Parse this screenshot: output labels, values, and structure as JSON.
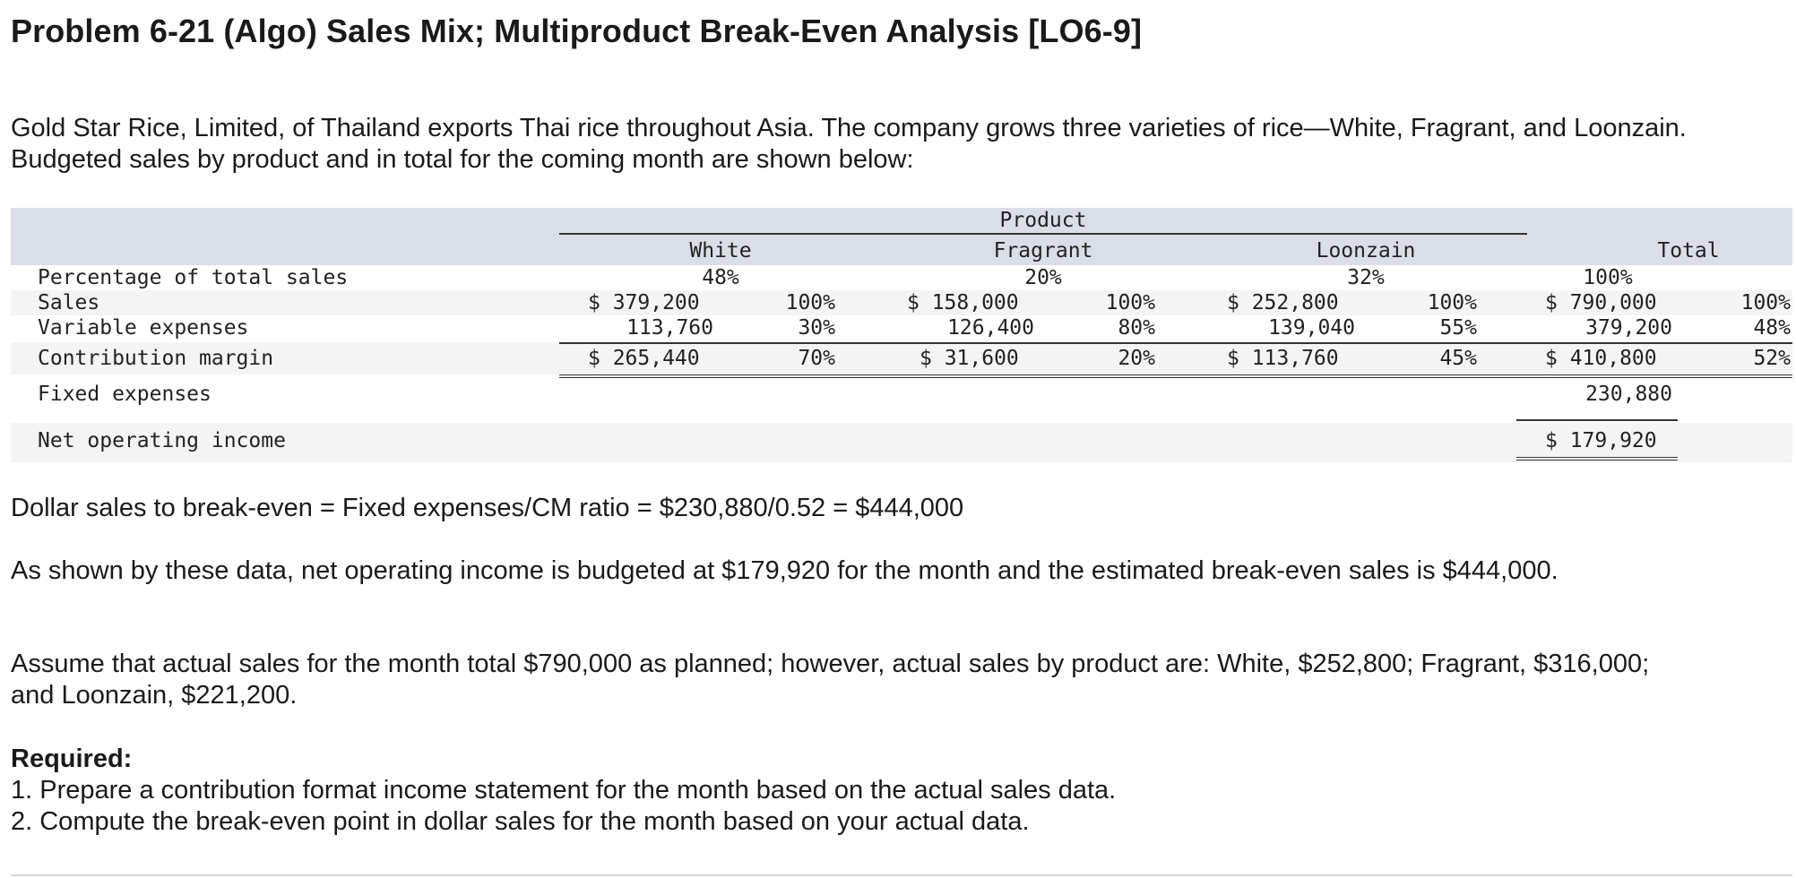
{
  "title": "Problem 6-21 (Algo) Sales Mix; Multiproduct Break-Even Analysis [LO6-9]",
  "intro": "Gold Star Rice, Limited, of Thailand exports Thai rice throughout Asia. The company grows three varieties of rice—White, Fragrant, and Loonzain. Budgeted sales by product and in total for the coming month are shown below:",
  "table": {
    "product_header": "Product",
    "columns": [
      "White",
      "Fragrant",
      "Loonzain",
      "Total"
    ],
    "rows": {
      "percentage": {
        "label": "Percentage of total sales",
        "values": [
          "48%",
          "20%",
          "32%",
          "100%"
        ]
      },
      "sales": {
        "label": "Sales",
        "amounts": [
          "$ 379,200",
          "$ 158,000",
          "$ 252,800",
          "$ 790,000"
        ],
        "pcts": [
          "100%",
          "100%",
          "100%",
          "100%"
        ]
      },
      "variable": {
        "label": "Variable expenses",
        "amounts": [
          "113,760",
          "126,400",
          "139,040",
          "379,200"
        ],
        "pcts": [
          "30%",
          "80%",
          "55%",
          "48%"
        ]
      },
      "cm": {
        "label": "Contribution margin",
        "amounts": [
          "$ 265,440",
          "$ 31,600",
          "$ 113,760",
          "$ 410,800"
        ],
        "pcts": [
          "70%",
          "20%",
          "45%",
          "52%"
        ]
      },
      "fixed": {
        "label": "Fixed expenses",
        "total": "230,880"
      },
      "noi": {
        "label": "Net operating income",
        "total": "$ 179,920"
      }
    }
  },
  "breakeven_line": "Dollar sales to break-even = Fixed expenses/CM ratio = $230,880/0.52 = $444,000",
  "para2": "As shown by these data, net operating income is budgeted at $179,920 for the month and the estimated break-even sales is $444,000.",
  "para3": "Assume that actual sales for the month total $790,000 as planned; however, actual sales by product are: White, $252,800; Fragrant, $316,000; and Loonzain, $221,200.",
  "required_title": "Required:",
  "required_items": [
    "1. Prepare a contribution format income statement for the month based on the actual sales data.",
    "2. Compute the break-even point in dollar sales for the month based on your actual data."
  ]
}
